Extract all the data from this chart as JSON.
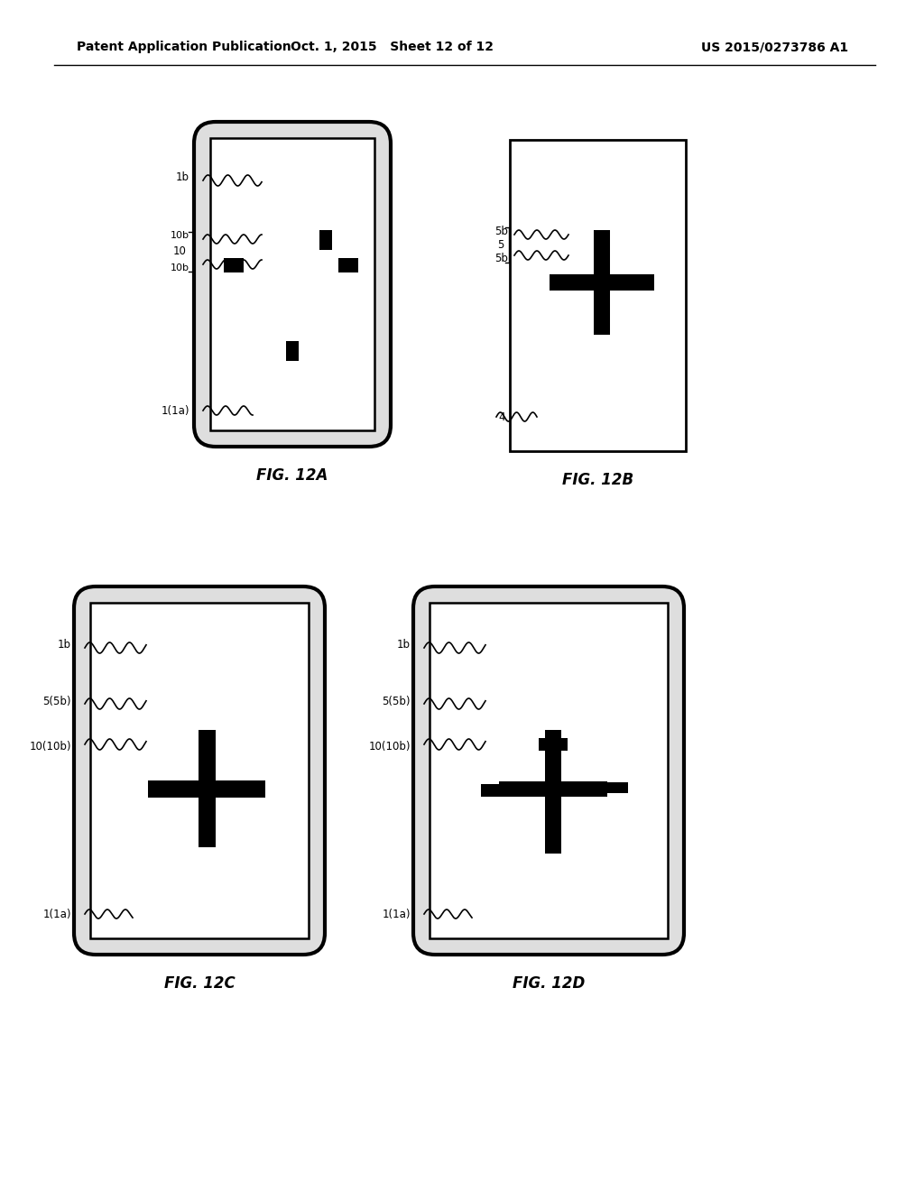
{
  "background_color": "#ffffff",
  "header_left": "Patent Application Publication",
  "header_mid": "Oct. 1, 2015   Sheet 12 of 12",
  "header_right": "US 2015/0273786 A1"
}
